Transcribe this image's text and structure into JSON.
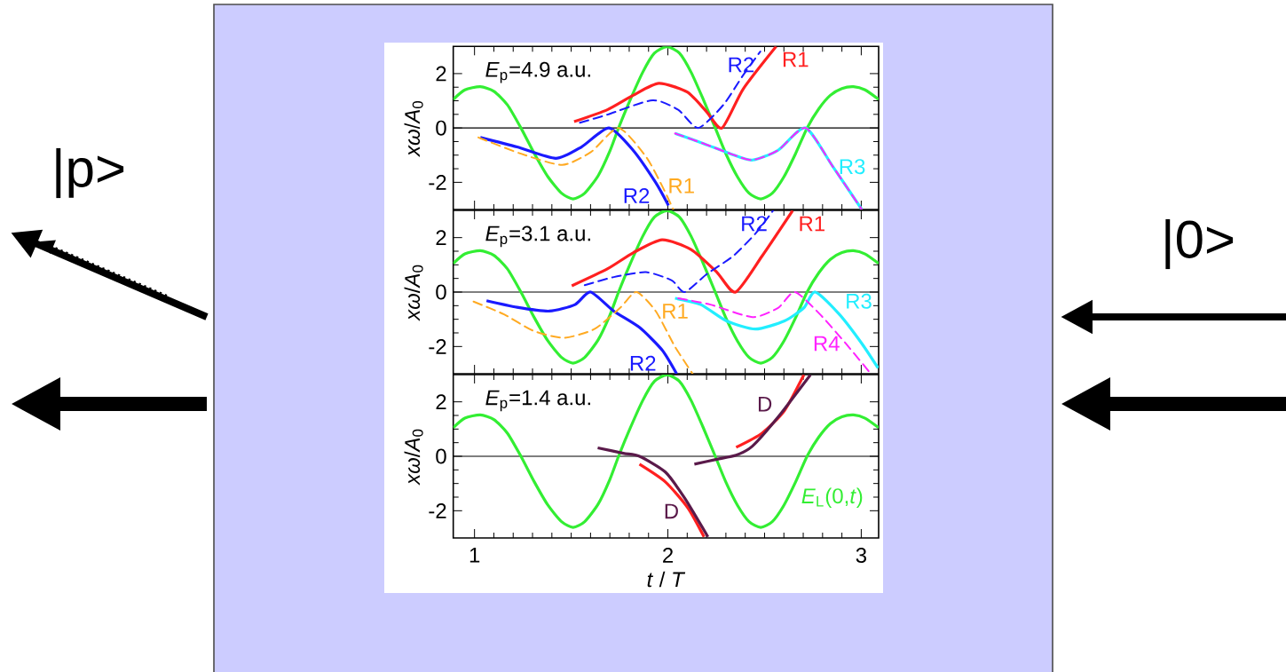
{
  "chart_data": [
    {
      "type": "line",
      "title": "*E*$_{p}$=4.9 a.u.",
      "ylabel": "*xω*/*A*$_{0}$",
      "xlim": [
        0.89,
        3.09
      ],
      "ylim": [
        -3,
        3
      ],
      "xticks": [
        1,
        2,
        3
      ],
      "yticks": [
        -2,
        0,
        2
      ],
      "tick_labels": "y",
      "ref_lines": [
        {
          "axis": "y",
          "value": 0,
          "color": "#000000"
        }
      ],
      "annotations": [
        "|p>",
        "|0>"
      ],
      "series": [
        {
          "color": "#33ee33",
          "x": [
            0.89,
            0.95,
            1.03,
            1.1,
            1.17,
            1.24,
            1.31,
            1.38,
            1.45,
            1.51,
            1.57,
            1.64,
            1.7,
            1.745,
            1.8,
            1.87,
            1.93,
            1.995,
            2.06,
            2.12,
            2.18,
            2.245,
            2.3,
            2.36,
            2.42,
            2.48,
            2.54,
            2.6,
            2.66,
            2.72,
            2.78,
            2.84,
            2.9,
            2.96,
            3.02,
            3.09
          ],
          "values": [
            1.05,
            1.4,
            1.52,
            1.35,
            0.85,
            0,
            -0.95,
            -1.8,
            -2.4,
            -2.61,
            -2.4,
            -1.75,
            -0.85,
            0,
            0.95,
            2.05,
            2.75,
            2.99,
            2.75,
            2.05,
            1.1,
            0,
            -0.95,
            -1.8,
            -2.4,
            -2.61,
            -2.4,
            -1.8,
            -0.95,
            0,
            0.7,
            1.2,
            1.45,
            1.52,
            1.4,
            1.05
          ]
        },
        {
          "name": "R1",
          "color": "#ff2020",
          "x": [
            1.515,
            1.687,
            1.82,
            1.953,
            2.1,
            2.2,
            2.28,
            2.39,
            2.56
          ],
          "values": [
            0.23,
            0.67,
            1.2,
            1.64,
            1.32,
            0.6,
            0,
            1.44,
            3.0
          ]
        },
        {
          "name": "R2",
          "color": "#1a1aff",
          "line_style": "dashed",
          "x": [
            1.545,
            1.687,
            1.92,
            2.053,
            2.157,
            2.287,
            2.387,
            2.478
          ],
          "values": [
            0.19,
            0.49,
            1.02,
            0.67,
            0,
            0.85,
            1.92,
            2.81
          ]
        },
        {
          "name": "R2",
          "color": "#1a1aff",
          "x": [
            1.03,
            1.22,
            1.42,
            1.553,
            1.695,
            1.82,
            1.937,
            2.003
          ],
          "values": [
            -0.35,
            -0.7,
            -1.12,
            -0.7,
            0,
            -0.82,
            -2.01,
            -2.85
          ]
        },
        {
          "name": "R1",
          "color": "#ffaa22",
          "line_style": "dashed",
          "x": [
            1.02,
            1.237,
            1.453,
            1.603,
            1.745,
            1.887,
            1.97,
            2.028
          ],
          "values": [
            -0.35,
            -0.94,
            -1.36,
            -0.88,
            0,
            -1.06,
            -2.13,
            -3.0
          ]
        },
        {
          "name": "R3",
          "color": "#22eeff",
          "x": [
            2.037,
            2.187,
            2.32,
            2.437,
            2.57,
            2.712,
            2.853,
            3.003
          ],
          "values": [
            -0.2,
            -0.58,
            -0.94,
            -1.18,
            -0.82,
            0,
            -1.42,
            -3.0
          ]
        },
        {
          "color": "#ff22ff",
          "line_style": "dashed",
          "x": [
            2.037,
            2.187,
            2.32,
            2.437,
            2.57,
            2.712,
            2.853,
            3.003
          ],
          "values": [
            -0.2,
            -0.58,
            -0.94,
            -1.18,
            -0.82,
            0,
            -1.42,
            -3.0
          ]
        }
      ]
    },
    {
      "type": "line",
      "title": "*E*$_{p}$=3.1 a.u.",
      "ylabel": "*xω*/*A*$_{0}$",
      "xlim": [
        0.89,
        3.09
      ],
      "ylim": [
        -3,
        3
      ],
      "xticks": [
        1,
        2,
        3
      ],
      "yticks": [
        -2,
        0,
        2
      ],
      "tick_labels": "y",
      "ref_lines": [
        {
          "axis": "y",
          "value": 0,
          "color": "#000000"
        }
      ],
      "series": [
        {
          "color": "#33ee33",
          "x": [
            0.89,
            0.95,
            1.03,
            1.1,
            1.17,
            1.24,
            1.31,
            1.38,
            1.45,
            1.51,
            1.57,
            1.64,
            1.7,
            1.745,
            1.8,
            1.87,
            1.93,
            1.995,
            2.06,
            2.12,
            2.18,
            2.245,
            2.3,
            2.36,
            2.42,
            2.48,
            2.54,
            2.6,
            2.66,
            2.72,
            2.78,
            2.84,
            2.9,
            2.96,
            3.02,
            3.09
          ],
          "values": [
            1.05,
            1.4,
            1.52,
            1.35,
            0.85,
            0,
            -0.95,
            -1.8,
            -2.4,
            -2.61,
            -2.4,
            -1.75,
            -0.85,
            0,
            0.95,
            2.05,
            2.75,
            2.99,
            2.75,
            2.05,
            1.1,
            0,
            -0.95,
            -1.8,
            -2.4,
            -2.61,
            -2.4,
            -1.8,
            -0.95,
            0,
            0.7,
            1.2,
            1.45,
            1.52,
            1.4,
            1.05
          ]
        },
        {
          "name": "R1",
          "color": "#ff2020",
          "x": [
            1.503,
            1.687,
            1.82,
            1.97,
            2.12,
            2.253,
            2.35,
            2.487,
            2.645
          ],
          "values": [
            0.23,
            0.85,
            1.44,
            1.92,
            1.56,
            0.73,
            0,
            1.32,
            2.99
          ]
        },
        {
          "name": "R2",
          "color": "#1a1aff",
          "line_style": "dashed",
          "x": [
            1.57,
            1.72,
            1.887,
            2.02,
            2.087,
            2.203,
            2.337,
            2.453,
            2.545
          ],
          "values": [
            0.25,
            0.55,
            0.73,
            0.43,
            0,
            0.67,
            1.32,
            2.15,
            3.0
          ]
        },
        {
          "name": "R2",
          "color": "#1a1aff",
          "x": [
            1.062,
            1.22,
            1.387,
            1.52,
            1.6,
            1.72,
            1.853,
            1.97,
            2.045
          ],
          "values": [
            -0.32,
            -0.56,
            -0.7,
            -0.46,
            0,
            -0.7,
            -1.3,
            -2.13,
            -3.0
          ]
        },
        {
          "name": "R1",
          "color": "#ffaa22",
          "line_style": "dashed",
          "x": [
            0.995,
            1.153,
            1.303,
            1.462,
            1.62,
            1.753,
            1.837,
            1.937,
            2.037,
            2.128
          ],
          "values": [
            -0.35,
            -0.82,
            -1.42,
            -1.68,
            -1.36,
            -0.58,
            0,
            -0.7,
            -2.01,
            -3.0
          ]
        },
        {
          "name": "R3",
          "color": "#22eeff",
          "x": [
            2.037,
            2.17,
            2.303,
            2.453,
            2.603,
            2.703,
            2.762,
            2.887,
            3.003,
            3.087
          ],
          "values": [
            -0.23,
            -0.46,
            -1.06,
            -1.36,
            -1.06,
            -0.58,
            0,
            -0.82,
            -1.89,
            -2.79
          ]
        },
        {
          "name": "R4",
          "color": "#ff22ff",
          "line_style": "dashed",
          "x": [
            2.053,
            2.22,
            2.437,
            2.57,
            2.657,
            2.787,
            2.92,
            3.045
          ],
          "values": [
            -0.23,
            -0.46,
            -0.92,
            -0.58,
            0,
            -0.82,
            -1.89,
            -2.96
          ]
        }
      ]
    },
    {
      "type": "line",
      "title": "*E*$_{p}$=1.4 a.u.",
      "xlabel": "*t* / *T*",
      "ylabel": "*xω*/*A*$_{0}$",
      "xlim": [
        0.89,
        3.09
      ],
      "ylim": [
        -3,
        3
      ],
      "xticks": [
        1,
        2,
        3
      ],
      "yticks": [
        -2,
        0,
        2
      ],
      "ref_lines": [
        {
          "axis": "y",
          "value": 0,
          "color": "#000000"
        }
      ],
      "series": [
        {
          "name": "*E*$_{L}$(0,*t*)",
          "color": "#33ee33",
          "x": [
            0.89,
            0.95,
            1.03,
            1.1,
            1.17,
            1.24,
            1.31,
            1.38,
            1.45,
            1.51,
            1.57,
            1.64,
            1.7,
            1.745,
            1.8,
            1.87,
            1.93,
            1.995,
            2.06,
            2.12,
            2.18,
            2.245,
            2.3,
            2.36,
            2.42,
            2.48,
            2.54,
            2.6,
            2.66,
            2.72,
            2.78,
            2.84,
            2.9,
            2.96,
            3.02,
            3.09
          ],
          "values": [
            1.05,
            1.4,
            1.52,
            1.35,
            0.85,
            0,
            -0.95,
            -1.8,
            -2.4,
            -2.61,
            -2.4,
            -1.75,
            -0.85,
            0,
            0.95,
            2.05,
            2.75,
            2.99,
            2.75,
            2.05,
            1.1,
            0,
            -0.95,
            -1.8,
            -2.4,
            -2.61,
            -2.4,
            -1.8,
            -0.95,
            0,
            0.7,
            1.2,
            1.45,
            1.52,
            1.4,
            1.05
          ]
        },
        {
          "color": "#ff2020",
          "x": [
            1.853,
            1.987,
            2.103,
            2.187
          ],
          "values": [
            -0.29,
            -0.94,
            -1.89,
            -2.96
          ]
        },
        {
          "color": "#ff2020",
          "x": [
            2.353,
            2.487,
            2.603,
            2.703
          ],
          "values": [
            0.33,
            0.85,
            1.68,
            2.99
          ]
        },
        {
          "name": "D",
          "color": "#5a1a4a",
          "x": [
            1.637,
            1.77,
            1.853,
            1.987,
            2.087,
            2.207
          ],
          "values": [
            0.31,
            0.11,
            0,
            -0.58,
            -1.54,
            -2.96
          ]
        },
        {
          "name": "D",
          "color": "#5a1a4a",
          "x": [
            2.137,
            2.253,
            2.353,
            2.437,
            2.57,
            2.737
          ],
          "values": [
            -0.29,
            -0.11,
            0.04,
            0.37,
            1.44,
            2.99
          ]
        }
      ]
    }
  ]
}
